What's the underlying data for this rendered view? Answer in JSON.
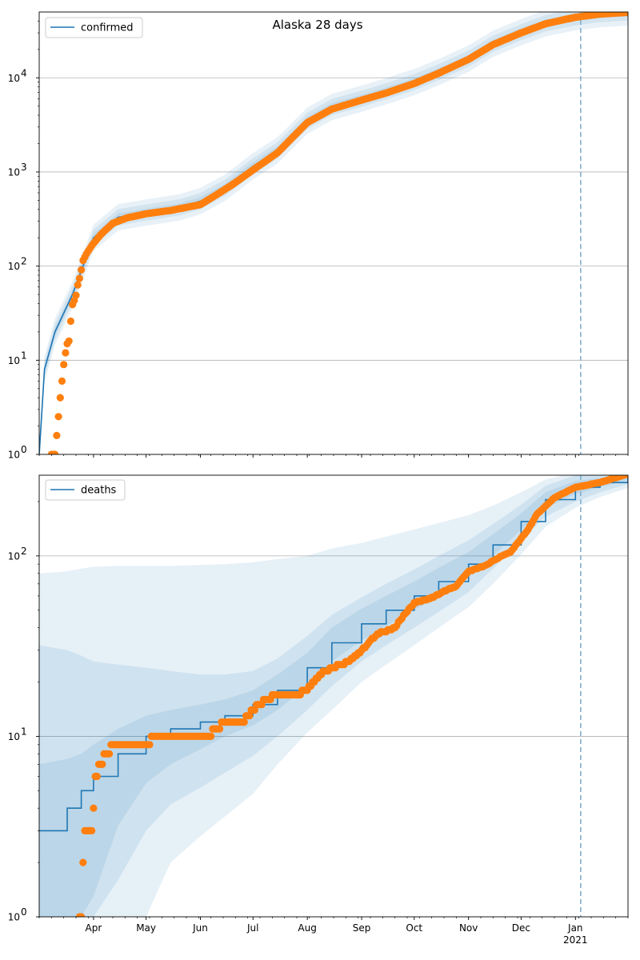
{
  "figure_title": "Alaska 28 days",
  "colors": {
    "model_line": "#1f77b4",
    "observed": "#ff7f0e",
    "band": "#1f77b4",
    "grid": "#b0b0b0",
    "forecast_marker": "#7fb0d0"
  },
  "x_axis": {
    "range": [
      "2020-03-01",
      "2021-01-31"
    ],
    "month_labels": [
      {
        "date": "2020-04-01",
        "label": "Apr"
      },
      {
        "date": "2020-05-01",
        "label": "May"
      },
      {
        "date": "2020-06-01",
        "label": "Jun"
      },
      {
        "date": "2020-07-01",
        "label": "Jul"
      },
      {
        "date": "2020-08-01",
        "label": "Aug"
      },
      {
        "date": "2020-09-01",
        "label": "Sep"
      },
      {
        "date": "2020-10-01",
        "label": "Oct"
      },
      {
        "date": "2020-11-01",
        "label": "Nov"
      },
      {
        "date": "2020-12-01",
        "label": "Dec"
      },
      {
        "date": "2021-01-01",
        "label": "Jan"
      }
    ],
    "year_label": "2021",
    "forecast_start": "2021-01-04"
  },
  "chart_data": [
    {
      "type": "line",
      "legend": "confirmed",
      "legend_position": "upper-left",
      "y_scale": "log",
      "ylim": [
        1,
        50000
      ],
      "y_ticks": [
        {
          "value": 1,
          "base": "10",
          "exp": "0"
        },
        {
          "value": 10,
          "base": "10",
          "exp": "1"
        },
        {
          "value": 100,
          "base": "10",
          "exp": "2"
        },
        {
          "value": 1000,
          "base": "10",
          "exp": "3"
        },
        {
          "value": 10000,
          "base": "10",
          "exp": "4"
        }
      ],
      "grid": "horizontal",
      "model": {
        "x": [
          "2020-03-01",
          "2020-03-04",
          "2020-03-10",
          "2020-03-20",
          "2020-04-01",
          "2020-04-15",
          "2020-05-01",
          "2020-05-20",
          "2020-06-01",
          "2020-06-15",
          "2020-07-01",
          "2020-07-15",
          "2020-08-01",
          "2020-08-15",
          "2020-09-01",
          "2020-09-15",
          "2020-10-01",
          "2020-10-15",
          "2020-11-01",
          "2020-11-15",
          "2020-12-01",
          "2020-12-15",
          "2021-01-01",
          "2021-01-15",
          "2021-01-31"
        ],
        "y": [
          1,
          8,
          20,
          50,
          200,
          330,
          370,
          420,
          490,
          680,
          1150,
          1700,
          3500,
          4900,
          6000,
          7200,
          9000,
          11500,
          16000,
          23000,
          30500,
          38000,
          44000,
          47500,
          49500
        ],
        "band_ratios": [
          1.1,
          1.22,
          1.38
        ]
      },
      "observed": {
        "x": [
          "2020-03-08",
          "2020-03-10",
          "2020-03-13",
          "2020-03-15",
          "2020-03-16",
          "2020-03-17",
          "2020-03-18",
          "2020-03-19",
          "2020-03-20",
          "2020-03-21",
          "2020-03-22",
          "2020-03-23",
          "2020-03-24",
          "2020-03-25",
          "2020-03-26",
          "2020-03-28",
          "2020-03-31",
          "2020-04-05",
          "2020-04-12",
          "2020-04-20",
          "2020-05-01",
          "2020-05-15",
          "2020-06-01",
          "2020-06-10",
          "2020-06-20",
          "2020-07-01",
          "2020-07-15",
          "2020-08-01",
          "2020-08-15",
          "2020-09-01",
          "2020-09-15",
          "2020-10-01",
          "2020-10-15",
          "2020-11-01",
          "2020-11-15",
          "2020-12-01",
          "2020-12-15",
          "2021-01-01",
          "2021-01-15",
          "2021-01-31"
        ],
        "y": [
          1,
          1,
          4,
          9,
          12,
          15,
          16,
          26,
          39,
          43,
          49,
          63,
          74,
          91,
          115,
          135,
          165,
          215,
          285,
          325,
          360,
          390,
          450,
          570,
          750,
          1050,
          1600,
          3350,
          4650,
          5800,
          6900,
          8700,
          11200,
          15700,
          22500,
          30000,
          37500,
          44000,
          47500,
          49500
        ]
      }
    },
    {
      "type": "line",
      "legend": "deaths",
      "legend_position": "upper-left",
      "y_scale": "log",
      "ylim": [
        1,
        280
      ],
      "y_ticks": [
        {
          "value": 1,
          "base": "10",
          "exp": "0"
        },
        {
          "value": 10,
          "base": "10",
          "exp": "1"
        },
        {
          "value": 100,
          "base": "10",
          "exp": "2"
        }
      ],
      "grid": "horizontal",
      "model": {
        "x": [
          "2020-03-01",
          "2020-03-17",
          "2020-03-25",
          "2020-04-01",
          "2020-04-15",
          "2020-05-01",
          "2020-05-15",
          "2020-06-01",
          "2020-06-15",
          "2020-07-01",
          "2020-07-15",
          "2020-08-01",
          "2020-08-15",
          "2020-09-01",
          "2020-09-15",
          "2020-10-01",
          "2020-10-15",
          "2020-11-01",
          "2020-11-15",
          "2020-12-01",
          "2020-12-15",
          "2021-01-01",
          "2021-01-15",
          "2021-01-31"
        ],
        "y": [
          3,
          4,
          5,
          6,
          8,
          10,
          11,
          12,
          13,
          15,
          18,
          24,
          33,
          42,
          50,
          60,
          72,
          90,
          115,
          155,
          205,
          240,
          255,
          275
        ],
        "band_lower": [
          [
            1,
            1,
            1,
            1.3,
            3.2,
            5.5,
            7,
            8.5,
            10,
            11.5,
            14,
            19,
            26,
            34,
            41,
            50,
            60,
            76,
            100,
            140,
            185,
            220,
            240,
            262
          ],
          [
            1,
            1,
            1,
            1,
            1.6,
            3.0,
            4.2,
            5.2,
            6.3,
            7.8,
            10,
            14,
            19,
            26,
            32,
            40,
            49,
            63,
            85,
            122,
            165,
            200,
            225,
            250
          ],
          [
            1,
            1,
            1,
            1,
            1,
            1,
            2.0,
            2.8,
            3.6,
            4.8,
            7,
            10.5,
            14,
            20,
            25,
            32,
            40,
            52,
            70,
            102,
            145,
            185,
            212,
            238
          ]
        ],
        "band_upper": [
          [
            7,
            7.5,
            8,
            9,
            11,
            13,
            14,
            15,
            16,
            18,
            22,
            29,
            40,
            51,
            60,
            72,
            86,
            105,
            132,
            172,
            225,
            260,
            270,
            285
          ],
          [
            32,
            30,
            28,
            26,
            25,
            24,
            23,
            22,
            22,
            23,
            27,
            36,
            47,
            59,
            70,
            84,
            100,
            122,
            150,
            192,
            245,
            280,
            285,
            295
          ],
          [
            80,
            82,
            85,
            87,
            88,
            88,
            88,
            89,
            90,
            92,
            96,
            100,
            110,
            118,
            128,
            140,
            152,
            168,
            190,
            225,
            265,
            290,
            295,
            300
          ]
        ]
      },
      "observed": {
        "x": [
          "2020-03-24",
          "2020-03-26",
          "2020-03-27",
          "2020-03-31",
          "2020-04-02",
          "2020-04-05",
          "2020-04-08",
          "2020-04-12",
          "2020-04-20",
          "2020-05-01",
          "2020-05-05",
          "2020-05-20",
          "2020-06-05",
          "2020-06-10",
          "2020-06-15",
          "2020-06-25",
          "2020-07-01",
          "2020-07-08",
          "2020-07-15",
          "2020-07-25",
          "2020-08-01",
          "2020-08-08",
          "2020-08-15",
          "2020-08-25",
          "2020-09-01",
          "2020-09-10",
          "2020-09-20",
          "2020-09-23",
          "2020-10-01",
          "2020-10-10",
          "2020-10-20",
          "2020-10-25",
          "2020-11-01",
          "2020-11-10",
          "2020-11-20",
          "2020-11-25",
          "2020-12-01",
          "2020-12-05",
          "2020-12-10",
          "2020-12-20",
          "2021-01-01",
          "2021-01-15",
          "2021-01-31"
        ],
        "y": [
          1,
          2,
          3,
          3,
          6,
          7,
          8,
          9,
          9,
          9,
          10,
          10,
          10,
          11,
          12,
          12,
          14,
          16,
          17,
          17,
          18,
          22,
          24,
          26,
          30,
          37,
          40,
          44,
          55,
          58,
          65,
          68,
          82,
          88,
          100,
          105,
          125,
          140,
          170,
          210,
          240,
          255,
          285
        ]
      }
    }
  ]
}
